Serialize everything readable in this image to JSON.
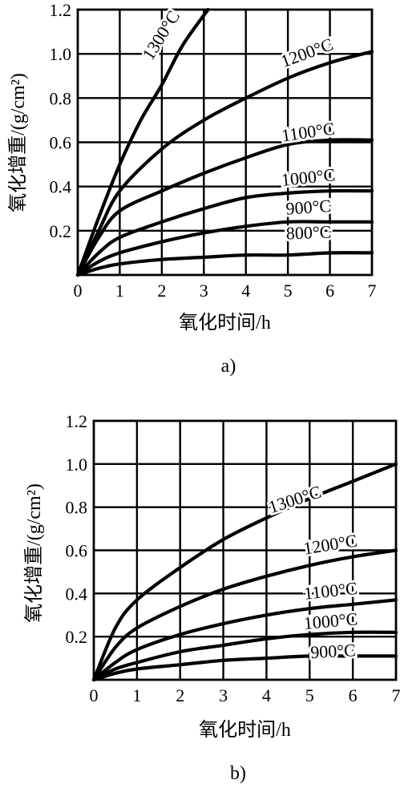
{
  "chart_data": [
    {
      "type": "line",
      "caption": "a)",
      "xlabel": "氧化时间/h",
      "ylabel": "氧化增重/(g/cm²)",
      "xlim": [
        0,
        7
      ],
      "ylim": [
        0,
        1.2
      ],
      "x_ticks": [
        "0",
        "1",
        "2",
        "3",
        "4",
        "5",
        "6",
        "7"
      ],
      "y_ticks": [
        "0.2",
        "0.4",
        "0.6",
        "0.8",
        "1.0",
        "1.2"
      ],
      "grid": true,
      "series": [
        {
          "name": "1300°C",
          "x": [
            0,
            0.5,
            1,
            1.5,
            2,
            2.5,
            3.1
          ],
          "y": [
            0,
            0.26,
            0.5,
            0.7,
            0.86,
            1.04,
            1.2
          ]
        },
        {
          "name": "1200°C",
          "x": [
            0,
            0.5,
            1,
            2,
            3,
            4,
            5,
            6,
            7
          ],
          "y": [
            0,
            0.2,
            0.38,
            0.57,
            0.7,
            0.8,
            0.89,
            0.96,
            1.01
          ]
        },
        {
          "name": "1100°C",
          "x": [
            0,
            0.5,
            1,
            2,
            3,
            4,
            5,
            6,
            7
          ],
          "y": [
            0,
            0.17,
            0.29,
            0.38,
            0.46,
            0.53,
            0.59,
            0.61,
            0.61
          ]
        },
        {
          "name": "1000°C",
          "x": [
            0,
            0.5,
            1,
            2,
            3,
            4,
            5,
            6,
            7
          ],
          "y": [
            0,
            0.1,
            0.17,
            0.24,
            0.3,
            0.35,
            0.37,
            0.38,
            0.38
          ]
        },
        {
          "name": "900°C",
          "x": [
            0,
            0.5,
            1,
            2,
            3,
            4,
            5,
            6,
            7
          ],
          "y": [
            0,
            0.06,
            0.1,
            0.15,
            0.19,
            0.22,
            0.24,
            0.24,
            0.24
          ]
        },
        {
          "name": "800°C",
          "x": [
            0,
            0.5,
            1,
            2,
            3,
            4,
            5,
            6,
            7
          ],
          "y": [
            0,
            0.03,
            0.05,
            0.07,
            0.08,
            0.09,
            0.09,
            0.1,
            0.1
          ]
        }
      ]
    },
    {
      "type": "line",
      "caption": "b)",
      "xlabel": "氧化时间/h",
      "ylabel": "氧化增重/(g/cm²)",
      "xlim": [
        0,
        7
      ],
      "ylim": [
        0,
        1.2
      ],
      "x_ticks": [
        "0",
        "1",
        "2",
        "3",
        "4",
        "5",
        "6",
        "7"
      ],
      "y_ticks": [
        "0.2",
        "0.4",
        "0.6",
        "0.8",
        "1.0",
        "1.2"
      ],
      "grid": true,
      "series": [
        {
          "name": "1300°C",
          "x": [
            0,
            0.5,
            1,
            2,
            3,
            4,
            5,
            6,
            7
          ],
          "y": [
            0,
            0.24,
            0.37,
            0.52,
            0.65,
            0.75,
            0.84,
            0.92,
            1.0
          ]
        },
        {
          "name": "1200°C",
          "x": [
            0,
            0.5,
            1,
            2,
            3,
            4,
            5,
            6,
            7
          ],
          "y": [
            0,
            0.15,
            0.24,
            0.34,
            0.42,
            0.48,
            0.53,
            0.57,
            0.6
          ]
        },
        {
          "name": "1100°C",
          "x": [
            0,
            0.5,
            1,
            2,
            3,
            4,
            5,
            6,
            7
          ],
          "y": [
            0,
            0.08,
            0.14,
            0.21,
            0.26,
            0.3,
            0.33,
            0.35,
            0.37
          ]
        },
        {
          "name": "1000°C",
          "x": [
            0,
            0.5,
            1,
            2,
            3,
            4,
            5,
            6,
            7
          ],
          "y": [
            0,
            0.05,
            0.08,
            0.13,
            0.16,
            0.19,
            0.21,
            0.22,
            0.22
          ]
        },
        {
          "name": "900°C",
          "x": [
            0,
            0.5,
            1,
            2,
            3,
            4,
            5,
            6,
            7
          ],
          "y": [
            0,
            0.03,
            0.05,
            0.07,
            0.09,
            0.1,
            0.11,
            0.11,
            0.11
          ]
        }
      ]
    }
  ]
}
